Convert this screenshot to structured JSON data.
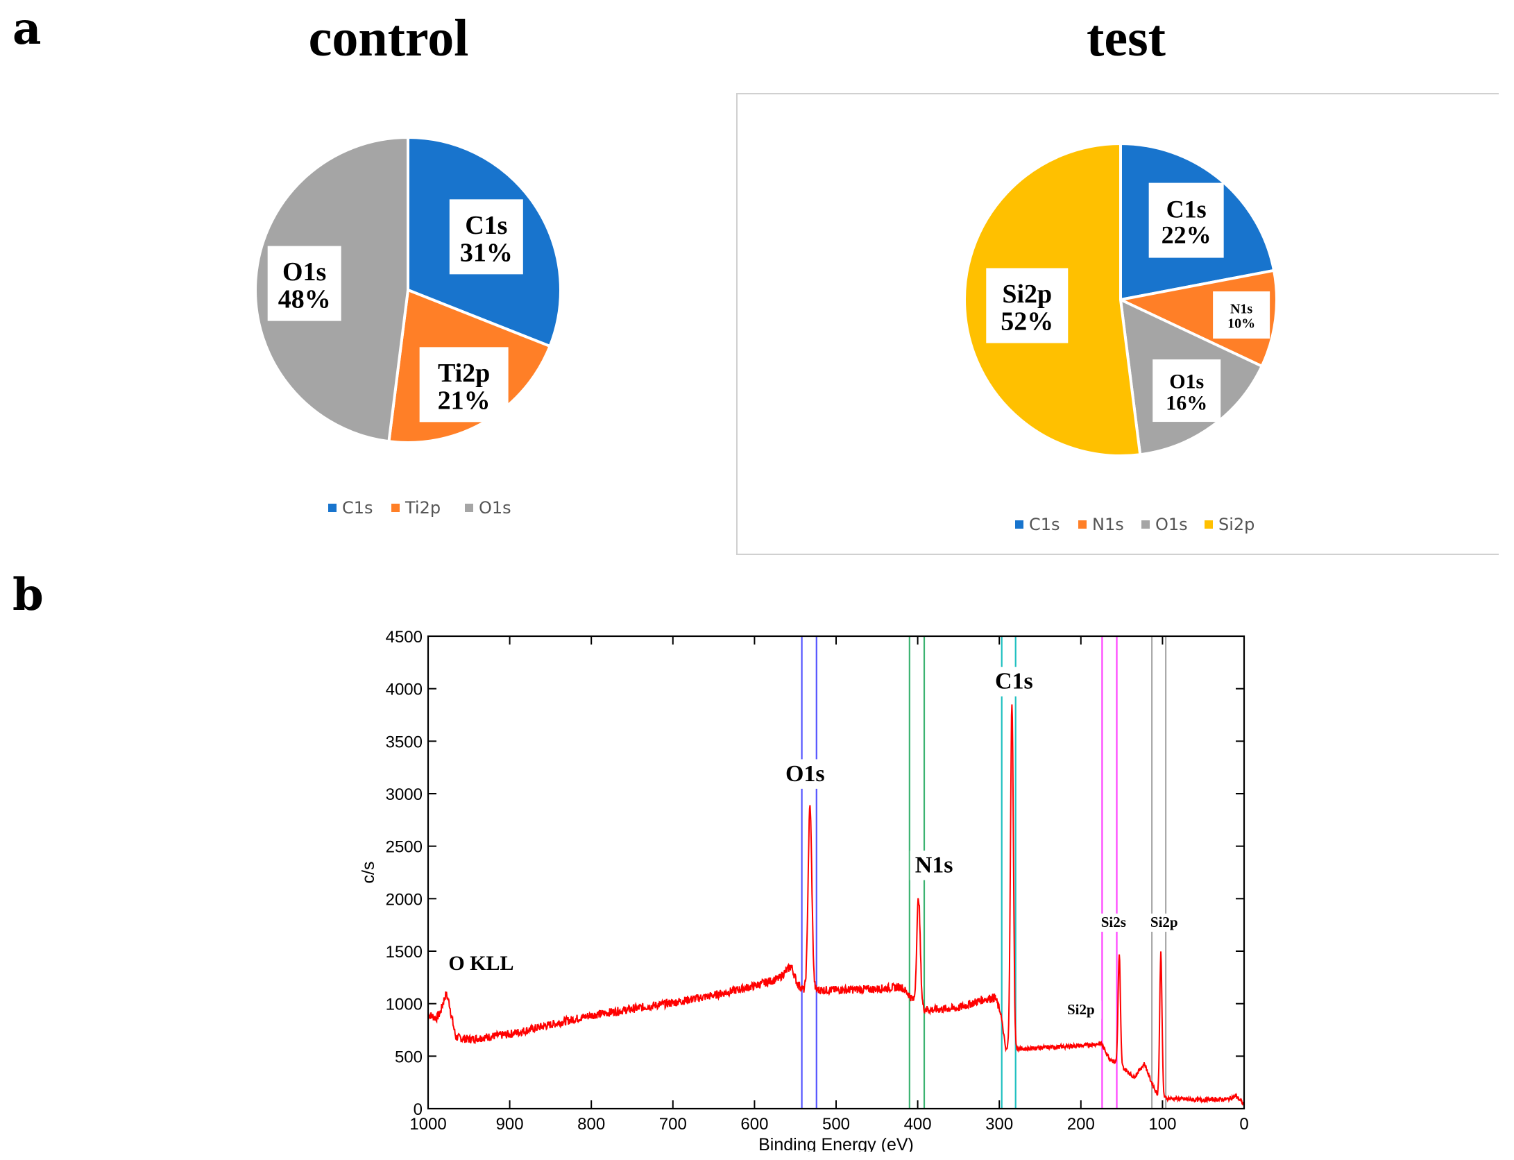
{
  "panel_labels": {
    "a": "a",
    "b": "b"
  },
  "chart_data": [
    {
      "type": "pie",
      "title": "control",
      "slices": [
        {
          "label": "C1s",
          "value": 31,
          "pct": "31%",
          "color": "#1874CD"
        },
        {
          "label": "Ti2p",
          "value": 21,
          "pct": "21%",
          "color": "#FF7F27"
        },
        {
          "label": "O1s",
          "value": 48,
          "pct": "48%",
          "color": "#A5A5A5"
        }
      ],
      "legend": [
        "C1s",
        "Ti2p",
        "O1s"
      ]
    },
    {
      "type": "pie",
      "title": "test",
      "slices": [
        {
          "label": "C1s",
          "value": 22,
          "pct": "22%",
          "color": "#1874CD"
        },
        {
          "label": "N1s",
          "value": 10,
          "pct": "10%",
          "color": "#FF7F27"
        },
        {
          "label": "O1s",
          "value": 16,
          "pct": "16%",
          "color": "#A5A5A5"
        },
        {
          "label": "Si2p",
          "value": 52,
          "pct": "52%",
          "color": "#FFC000"
        }
      ],
      "legend": [
        "C1s",
        "N1s",
        "O1s",
        "Si2p"
      ]
    },
    {
      "type": "line",
      "title": "",
      "xlabel": "Binding Energy (eV)",
      "ylabel": "c/s",
      "xlim": [
        1000,
        0
      ],
      "ylim": [
        0,
        4500
      ],
      "xticks": [
        1000,
        900,
        800,
        700,
        600,
        500,
        400,
        300,
        200,
        100,
        0
      ],
      "yticks": [
        0,
        500,
        1000,
        1500,
        2000,
        2500,
        3000,
        3500,
        4000,
        4500
      ],
      "line_color": "#FF0000",
      "baseline": [
        [
          1000,
          900
        ],
        [
          990,
          860
        ],
        [
          985,
          900
        ],
        [
          978,
          1010
        ],
        [
          974,
          950
        ],
        [
          966,
          680
        ],
        [
          950,
          660
        ],
        [
          900,
          710
        ],
        [
          850,
          800
        ],
        [
          800,
          890
        ],
        [
          750,
          950
        ],
        [
          700,
          1010
        ],
        [
          650,
          1080
        ],
        [
          600,
          1170
        ],
        [
          570,
          1240
        ],
        [
          555,
          1360
        ],
        [
          548,
          1200
        ],
        [
          540,
          1130
        ],
        [
          500,
          1130
        ],
        [
          450,
          1140
        ],
        [
          420,
          1160
        ],
        [
          410,
          1080
        ],
        [
          400,
          960
        ],
        [
          385,
          940
        ],
        [
          350,
          960
        ],
        [
          320,
          1040
        ],
        [
          305,
          1060
        ],
        [
          298,
          900
        ],
        [
          292,
          560
        ],
        [
          250,
          580
        ],
        [
          200,
          600
        ],
        [
          175,
          620
        ],
        [
          165,
          480
        ],
        [
          150,
          400
        ],
        [
          135,
          300
        ],
        [
          122,
          430
        ],
        [
          115,
          280
        ],
        [
          105,
          110
        ],
        [
          95,
          100
        ],
        [
          60,
          85
        ],
        [
          20,
          90
        ],
        [
          10,
          120
        ],
        [
          0,
          40
        ]
      ],
      "peaks": [
        {
          "center": 532,
          "height": 1750,
          "width": 3.2
        },
        {
          "center": 399,
          "height": 1050,
          "width": 3.0
        },
        {
          "center": 284.5,
          "height": 3300,
          "width": 2.5
        },
        {
          "center": 153,
          "height": 1050,
          "width": 2.0
        },
        {
          "center": 102,
          "height": 1380,
          "width": 2.0
        },
        {
          "center": 978,
          "height": 80,
          "width": 6
        }
      ],
      "region_markers": [
        {
          "x": 542,
          "color": "#5555FF"
        },
        {
          "x": 524,
          "color": "#5555FF"
        },
        {
          "x": 410,
          "color": "#3CB371"
        },
        {
          "x": 392,
          "color": "#3CB371"
        },
        {
          "x": 297,
          "color": "#20C0C0"
        },
        {
          "x": 280,
          "color": "#20C0C0"
        },
        {
          "x": 174,
          "color": "#FF44FF"
        },
        {
          "x": 156,
          "color": "#FF44FF"
        },
        {
          "x": 113,
          "color": "#AAAAAA"
        },
        {
          "x": 96,
          "color": "#AAAAAA"
        }
      ],
      "annotations": [
        {
          "text": "O KLL",
          "x": 935,
          "y": 1320,
          "size": "medium"
        },
        {
          "text": "O1s",
          "x": 538,
          "y": 3120,
          "size": "large"
        },
        {
          "text": "N1s",
          "x": 380,
          "y": 2250,
          "size": "large"
        },
        {
          "text": "C1s",
          "x": 282,
          "y": 4000,
          "size": "large"
        },
        {
          "text": "Si2s",
          "x": 160,
          "y": 1730,
          "size": "small"
        },
        {
          "text": "Si2p",
          "x": 98,
          "y": 1730,
          "size": "small"
        },
        {
          "text": "Si2p",
          "x": 200,
          "y": 900,
          "size": "small"
        }
      ]
    }
  ]
}
